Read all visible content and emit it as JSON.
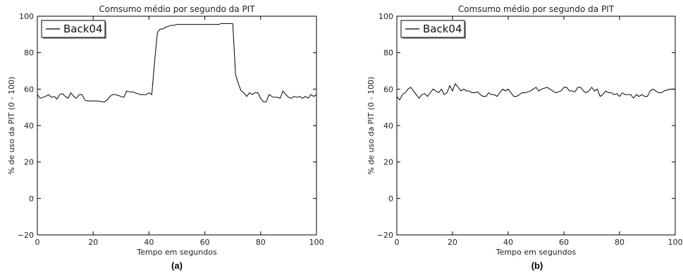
{
  "chart_data": [
    {
      "type": "line",
      "title": "Comsumo médio por segundo da PIT",
      "xlabel": "Tempo em segundos",
      "ylabel": "% de uso da PIT (0 - 100)",
      "xlim": [
        0,
        100
      ],
      "ylim": [
        -20,
        100
      ],
      "xticks": [
        "0",
        "20",
        "40",
        "60",
        "80",
        "100"
      ],
      "yticks": [
        "−20",
        "0",
        "20",
        "40",
        "60",
        "80",
        "100"
      ],
      "legend_position": "top-left",
      "caption": "(a)",
      "series": [
        {
          "name": "Back04",
          "color": "#000000",
          "x": [
            0,
            1,
            2,
            3,
            4,
            5,
            6,
            7,
            8,
            9,
            10,
            11,
            12,
            13,
            14,
            15,
            16,
            17,
            18,
            19,
            20,
            21,
            22,
            23,
            24,
            25,
            26,
            27,
            28,
            29,
            30,
            31,
            32,
            33,
            34,
            35,
            36,
            37,
            38,
            39,
            40,
            41,
            42,
            43,
            44,
            45,
            46,
            47,
            48,
            49,
            50,
            51,
            52,
            53,
            54,
            55,
            56,
            57,
            58,
            59,
            60,
            61,
            62,
            63,
            64,
            65,
            66,
            67,
            68,
            69,
            70,
            71,
            72,
            73,
            74,
            75,
            76,
            77,
            78,
            79,
            80,
            81,
            82,
            83,
            84,
            85,
            86,
            87,
            88,
            89,
            90,
            91,
            92,
            93,
            94,
            95,
            96,
            97,
            98,
            99,
            100
          ],
          "y": [
            57,
            55,
            55.5,
            56,
            57,
            55.5,
            56,
            54.5,
            57,
            57.5,
            56,
            55,
            58,
            56,
            55,
            57,
            57,
            54,
            53.5,
            53.5,
            53.5,
            53.5,
            53.5,
            53,
            53,
            54,
            56,
            57,
            57,
            56.5,
            56,
            55.5,
            59,
            58.5,
            58.5,
            58,
            57.5,
            57,
            57,
            57,
            58,
            57,
            75,
            91,
            93,
            93,
            94,
            94.5,
            95,
            95,
            95.5,
            95.5,
            95.5,
            95.5,
            95.5,
            95.5,
            95.5,
            95.5,
            95.5,
            95.5,
            95.5,
            95.5,
            95.5,
            95.5,
            95.5,
            95.5,
            96,
            96,
            96,
            96,
            96,
            68,
            63,
            59,
            58,
            56,
            58,
            57,
            58,
            58,
            55,
            53,
            53,
            57,
            56,
            55.5,
            55.5,
            55,
            59,
            57,
            55.5,
            55,
            56,
            55.5,
            56,
            55,
            56,
            55,
            57,
            56,
            57
          ]
        }
      ]
    },
    {
      "type": "line",
      "title": "Comsumo médio por segundo da PIT",
      "xlabel": "Tempo em segundos",
      "ylabel": "% de uso da PIT (0 - 100)",
      "xlim": [
        0,
        100
      ],
      "ylim": [
        -20,
        100
      ],
      "xticks": [
        "0",
        "20",
        "40",
        "60",
        "80",
        "100"
      ],
      "yticks": [
        "−20",
        "0",
        "20",
        "40",
        "60",
        "80",
        "100"
      ],
      "legend_position": "top-left",
      "caption": "(b)",
      "series": [
        {
          "name": "Back04",
          "color": "#000000",
          "x": [
            0,
            1,
            2,
            3,
            4,
            5,
            6,
            7,
            8,
            9,
            10,
            11,
            12,
            13,
            14,
            15,
            16,
            17,
            18,
            19,
            20,
            21,
            22,
            23,
            24,
            25,
            26,
            27,
            28,
            29,
            30,
            31,
            32,
            33,
            34,
            35,
            36,
            37,
            38,
            39,
            40,
            41,
            42,
            43,
            44,
            45,
            46,
            47,
            48,
            49,
            50,
            51,
            52,
            53,
            54,
            55,
            56,
            57,
            58,
            59,
            60,
            61,
            62,
            63,
            64,
            65,
            66,
            67,
            68,
            69,
            70,
            71,
            72,
            73,
            74,
            75,
            76,
            77,
            78,
            79,
            80,
            81,
            82,
            83,
            84,
            85,
            86,
            87,
            88,
            89,
            90,
            91,
            92,
            93,
            94,
            95,
            96,
            97,
            98,
            99,
            100
          ],
          "y": [
            56,
            54,
            57,
            58,
            60,
            61,
            59,
            57,
            55,
            57,
            57.5,
            56,
            58,
            60,
            59,
            58,
            60,
            57,
            58,
            62,
            59,
            63,
            61,
            59,
            60,
            59,
            59,
            58,
            58,
            58.5,
            57,
            56,
            56,
            58,
            57,
            57,
            56,
            58,
            60,
            59,
            60,
            58,
            56,
            56,
            57,
            58,
            58,
            58.5,
            59,
            60,
            61,
            59,
            60,
            60.5,
            61,
            60,
            59,
            58,
            58.5,
            59,
            61,
            61,
            59,
            59,
            58.5,
            61,
            61,
            59,
            58,
            59,
            61,
            59,
            60,
            56,
            57,
            59,
            58,
            58,
            57,
            57.5,
            56,
            58,
            57,
            57,
            57,
            55,
            57,
            56,
            57,
            56,
            56,
            59,
            60,
            59,
            58,
            58,
            59,
            59.5,
            60,
            60,
            60
          ]
        }
      ]
    }
  ]
}
